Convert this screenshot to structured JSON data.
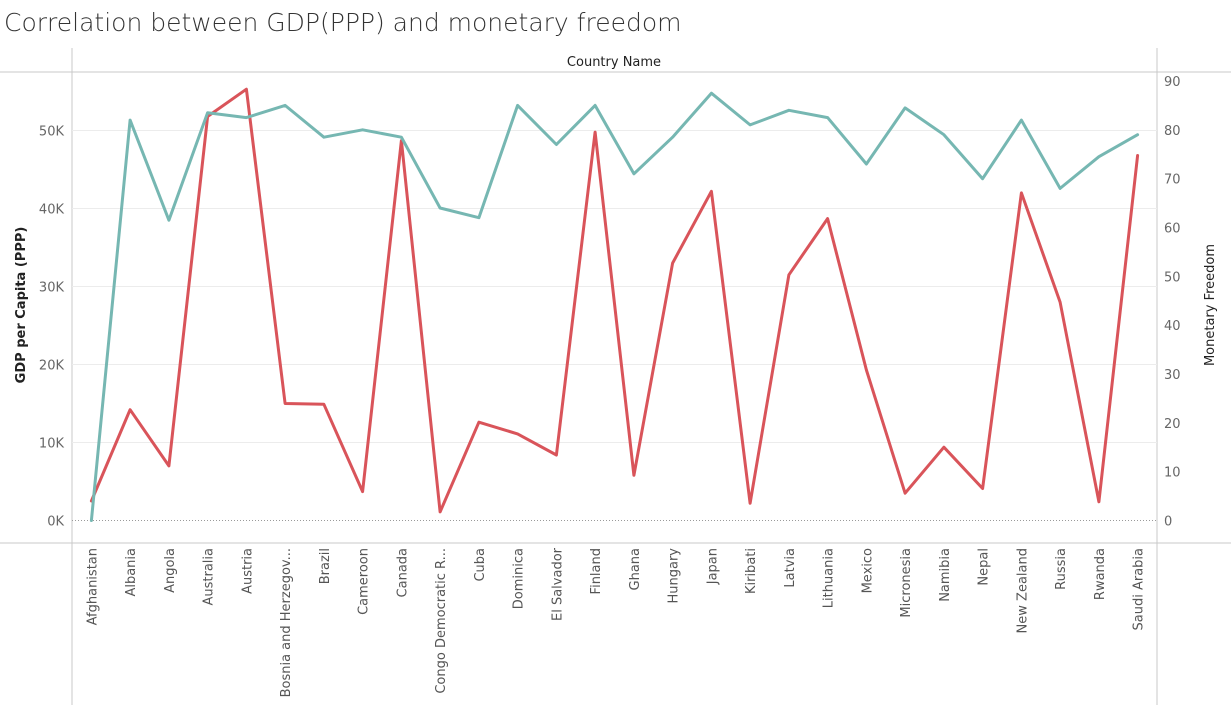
{
  "title": "Correlation between GDP(PPP) and monetary freedom",
  "chart_data": {
    "type": "line",
    "header": "Country Name",
    "categories": [
      "Afghanistan",
      "Albania",
      "Angola",
      "Australia",
      "Austria",
      "Bosnia and Herzegov...",
      "Brazil",
      "Cameroon",
      "Canada",
      "Congo Democratic R...",
      "Cuba",
      "Dominica",
      "El Salvador",
      "Finland",
      "Ghana",
      "Hungary",
      "Japan",
      "Kiribati",
      "Latvia",
      "Lithuania",
      "Mexico",
      "Micronesia",
      "Namibia",
      "Nepal",
      "New Zealand",
      "Russia",
      "Rwanda",
      "Saudi Arabia"
    ],
    "series": [
      {
        "axis": "left",
        "color": "#d9545a",
        "values": [
          2500,
          14200,
          7000,
          51800,
          55300,
          15000,
          14900,
          3700,
          48700,
          1100,
          12600,
          11100,
          8400,
          49800,
          5800,
          33000,
          42200,
          2200,
          31500,
          38700,
          19300,
          3500,
          9400,
          4100,
          42000,
          28000,
          2400,
          46800
        ]
      },
      {
        "axis": "right",
        "color": "#76b7b2",
        "values": [
          0,
          82,
          61.5,
          83.5,
          82.5,
          85,
          78.5,
          80,
          78.5,
          64,
          62,
          85,
          77,
          85,
          71,
          78.5,
          87.5,
          81,
          84,
          82.5,
          73,
          84.5,
          79,
          70,
          82,
          68,
          74.5,
          79
        ]
      }
    ],
    "ylabel": "GDP per Capita (PPP)",
    "y2label": "Monetary Freedom",
    "ylim": [
      0,
      60000
    ],
    "y2lim": [
      0,
      90
    ],
    "yticks": [
      0,
      10000,
      20000,
      30000,
      40000,
      50000
    ],
    "yticklabels": [
      "0K",
      "10K",
      "20K",
      "30K",
      "40K",
      "50K"
    ],
    "y2ticks": [
      0,
      10,
      20,
      30,
      40,
      50,
      60,
      70,
      80,
      90
    ],
    "y2ticklabels": [
      "0",
      "10",
      "20",
      "30",
      "40",
      "50",
      "60",
      "70",
      "80",
      "90"
    ],
    "grid": true
  }
}
